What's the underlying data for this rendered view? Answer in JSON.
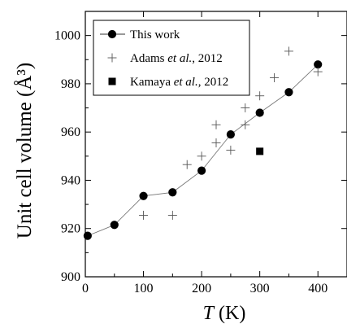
{
  "chart_data": {
    "type": "scatter",
    "xlabel": "T (K)",
    "ylabel": "Unit cell volume (Å³)",
    "xlim": [
      0,
      450
    ],
    "ylim": [
      900,
      1010
    ],
    "xticks": [
      0,
      100,
      200,
      300,
      400
    ],
    "yticks": [
      900,
      920,
      940,
      960,
      980,
      1000
    ],
    "legend_position": "top-left",
    "series": [
      {
        "name": "This work",
        "marker": "circle",
        "connected": true,
        "color": "#000000",
        "x": [
          4,
          50,
          100,
          150,
          200,
          250,
          300,
          350,
          400
        ],
        "y": [
          917,
          921.5,
          933.5,
          935,
          944,
          959,
          968,
          976.5,
          988
        ]
      },
      {
        "name": "Adams et al., 2012",
        "marker": "plus",
        "connected": false,
        "color": "#555555",
        "x": [
          100,
          150,
          175,
          200,
          225,
          225,
          250,
          275,
          275,
          300,
          325,
          350,
          400
        ],
        "y": [
          925.5,
          925.5,
          946.5,
          950,
          955.5,
          963,
          952.5,
          963,
          970,
          975,
          982.5,
          993.5,
          985
        ]
      },
      {
        "name": "Kamaya et al., 2012",
        "marker": "square",
        "connected": false,
        "color": "#000000",
        "x": [
          300
        ],
        "y": [
          952
        ]
      }
    ]
  }
}
